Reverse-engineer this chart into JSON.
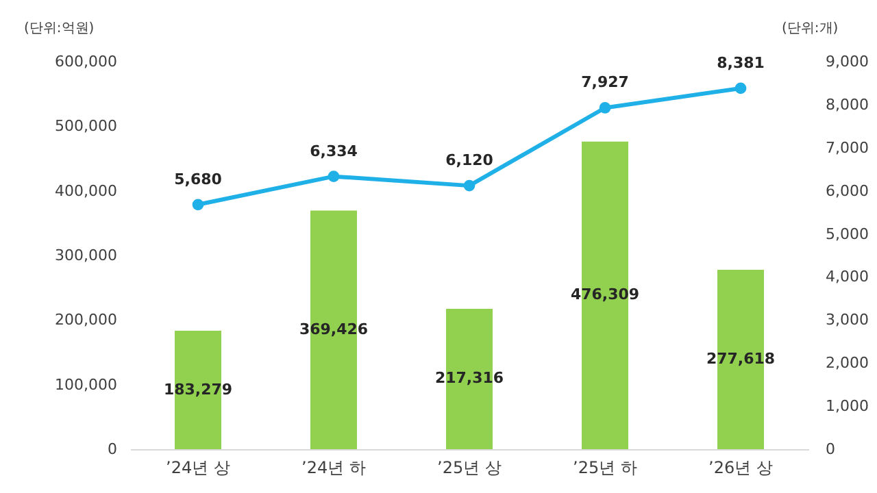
{
  "chart_data": {
    "type": "bar",
    "categories": [
      "’24년 상",
      "’24년 하",
      "’25년 상",
      "’25년 하",
      "’26년 상"
    ],
    "ylabel": "(단위:억원)",
    "y2label": "(단위:개)",
    "series": [
      {
        "type": "bar",
        "color": "#92d050",
        "values": [
          183279,
          369426,
          217316,
          476309,
          277618
        ],
        "value_labels": [
          "183,279",
          "369,426",
          "217,316",
          "476,309",
          "277,618"
        ]
      },
      {
        "type": "line",
        "axis": "y2",
        "color": "#1fb0e8",
        "marker": "circle",
        "values": [
          5680,
          6334,
          6120,
          7927,
          8381
        ],
        "value_labels": [
          "5,680",
          "6,334",
          "6,120",
          "7,927",
          "8,381"
        ]
      }
    ],
    "ylim": [
      0,
      600000
    ],
    "yticks": [
      0,
      {
        "value": 100000,
        "label": "100,000"
      },
      {
        "value": 200000,
        "label": "200,000"
      },
      {
        "value": 300000,
        "label": "300,000"
      },
      {
        "value": 400000,
        "label": "400,000"
      },
      {
        "value": 500000,
        "label": "500,000"
      },
      {
        "value": 600000,
        "label": "600,000"
      }
    ],
    "y2lim": [
      0,
      9000
    ],
    "y2ticks": [
      0,
      {
        "value": 1000,
        "label": "1,000"
      },
      {
        "value": 2000,
        "label": "2,000"
      },
      {
        "value": 3000,
        "label": "3,000"
      },
      {
        "value": 4000,
        "label": "4,000"
      },
      {
        "value": 5000,
        "label": "5,000"
      },
      {
        "value": 6000,
        "label": "6,000"
      },
      {
        "value": 7000,
        "label": "7,000"
      },
      {
        "value": 8000,
        "label": "8,000"
      },
      {
        "value": 9000,
        "label": "9,000"
      }
    ],
    "grid": false
  }
}
